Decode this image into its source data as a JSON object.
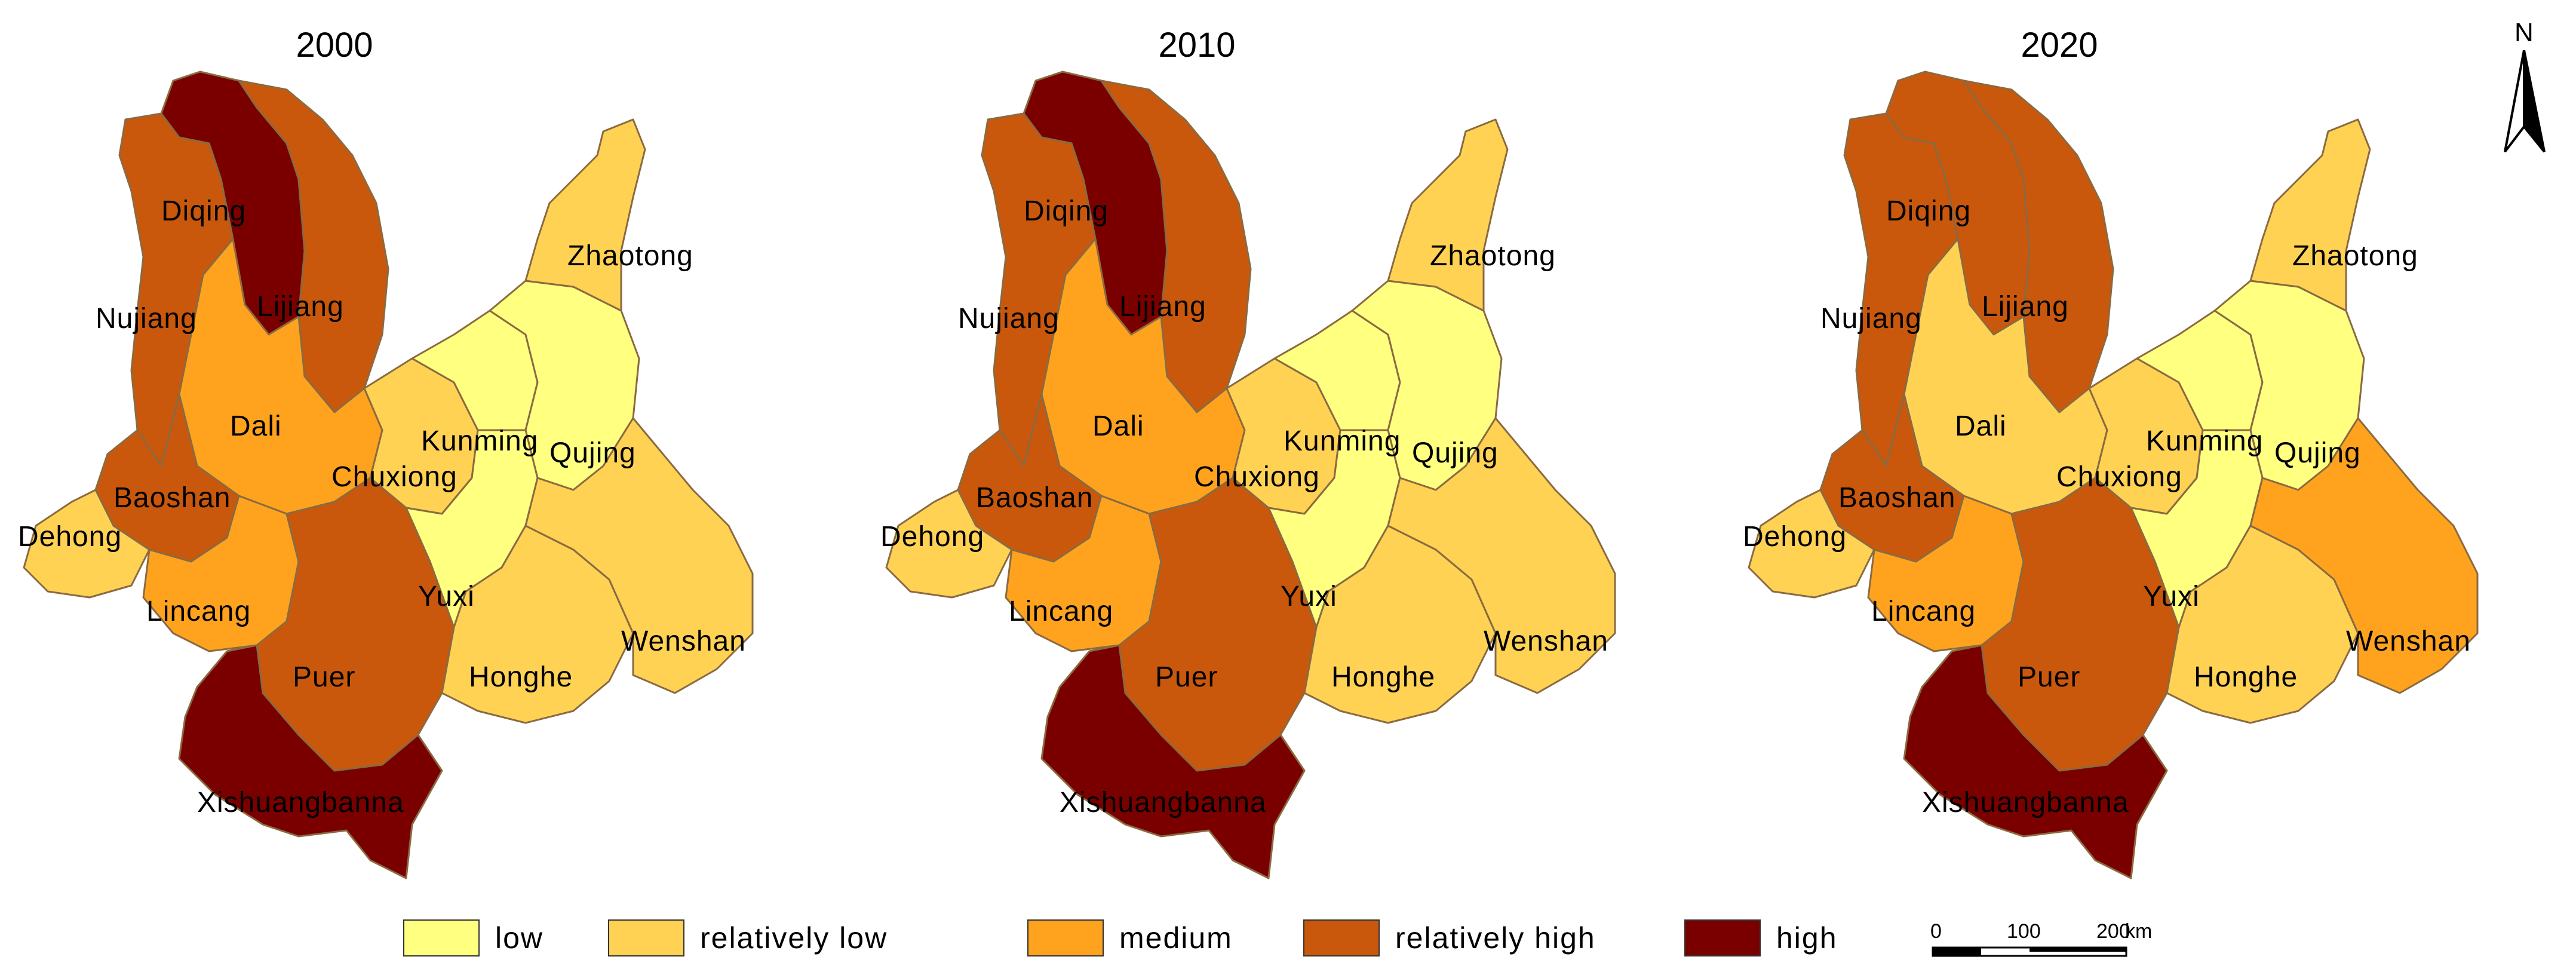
{
  "panels": [
    {
      "year": "2000",
      "regions": {
        "Diqing": "high",
        "Nujiang": "relatively high",
        "Lijiang": "relatively high",
        "Dali": "medium",
        "Baoshan": "relatively high",
        "Dehong": "relatively low",
        "Lincang": "medium",
        "Puer": "relatively high",
        "Xishuangbanna": "high",
        "Chuxiong": "relatively low",
        "Kunming": "low",
        "Qujing": "low",
        "Zhaotong": "relatively low",
        "Yuxi": "low",
        "Honghe": "relatively low",
        "Wenshan": "relatively low"
      }
    },
    {
      "year": "2010",
      "regions": {
        "Diqing": "high",
        "Nujiang": "relatively high",
        "Lijiang": "relatively high",
        "Dali": "medium",
        "Baoshan": "relatively high",
        "Dehong": "relatively low",
        "Lincang": "medium",
        "Puer": "relatively high",
        "Xishuangbanna": "high",
        "Chuxiong": "relatively low",
        "Kunming": "low",
        "Qujing": "low",
        "Zhaotong": "relatively low",
        "Yuxi": "low",
        "Honghe": "relatively low",
        "Wenshan": "relatively low"
      }
    },
    {
      "year": "2020",
      "regions": {
        "Diqing": "relatively high",
        "Nujiang": "relatively high",
        "Lijiang": "relatively high",
        "Dali": "relatively low",
        "Baoshan": "relatively high",
        "Dehong": "relatively low",
        "Lincang": "medium",
        "Puer": "relatively high",
        "Xishuangbanna": "high",
        "Chuxiong": "relatively low",
        "Kunming": "low",
        "Qujing": "low",
        "Zhaotong": "relatively low",
        "Yuxi": "low",
        "Honghe": "relatively low",
        "Wenshan": "medium"
      }
    }
  ],
  "labels": [
    "Diqing",
    "Nujiang",
    "Lijiang",
    "Dali",
    "Baoshan",
    "Dehong",
    "Lincang",
    "Puer",
    "Xishuangbanna",
    "Chuxiong",
    "Kunming",
    "Qujing",
    "Zhaotong",
    "Yuxi",
    "Honghe",
    "Wenshan"
  ],
  "legend": [
    {
      "label": "low",
      "color": "#ffff80"
    },
    {
      "label": "relatively low",
      "color": "#ffd254"
    },
    {
      "label": "medium",
      "color": "#ffa31f"
    },
    {
      "label": "relatively high",
      "color": "#c9580d"
    },
    {
      "label": "high",
      "color": "#7a0000"
    }
  ],
  "scale": {
    "ticks": [
      "0",
      "100",
      "200"
    ],
    "unit": "km"
  },
  "north_label": "N"
}
